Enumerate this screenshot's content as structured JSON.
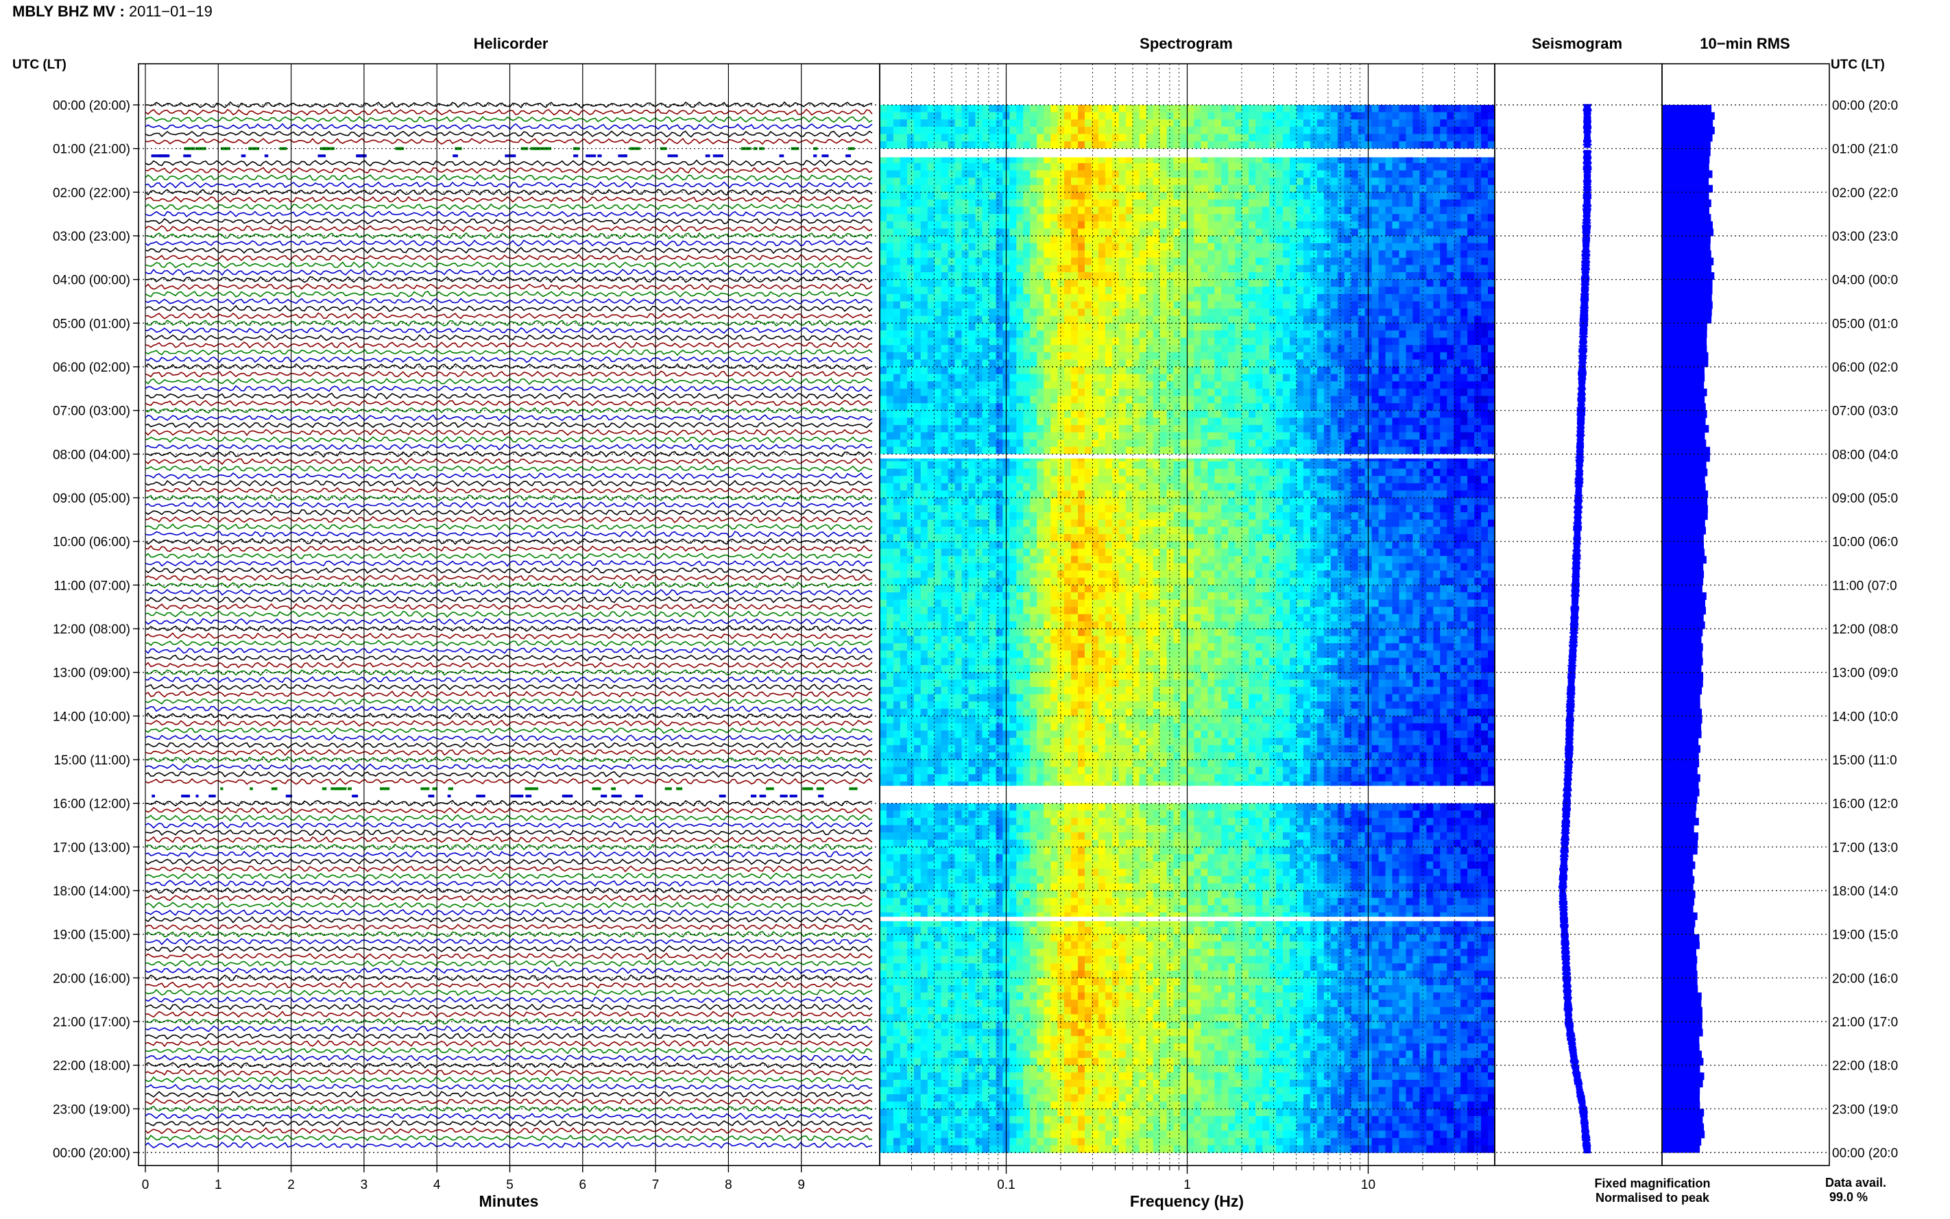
{
  "header": {
    "station": "MBLY BHZ MV",
    "date": "2011−01−19"
  },
  "panels": {
    "helicorder": "Helicorder",
    "spectrogram": "Spectrogram",
    "seismogram": "Seismogram",
    "rms": "10−min RMS"
  },
  "time_axis": {
    "header_left": "UTC (LT)",
    "header_right": "UTC (LT)",
    "left_labels": [
      "00:00 (20:00)",
      "01:00 (21:00)",
      "02:00 (22:00)",
      "03:00 (23:00)",
      "04:00 (00:00)",
      "05:00 (01:00)",
      "06:00 (02:00)",
      "07:00 (03:00)",
      "08:00 (04:00)",
      "09:00 (05:00)",
      "10:00 (06:00)",
      "11:00 (07:00)",
      "12:00 (08:00)",
      "13:00 (09:00)",
      "14:00 (10:00)",
      "15:00 (11:00)",
      "16:00 (12:00)",
      "17:00 (13:00)",
      "18:00 (14:00)",
      "19:00 (15:00)",
      "20:00 (16:00)",
      "21:00 (17:00)",
      "22:00 (18:00)",
      "23:00 (19:00)",
      "00:00 (20:00)"
    ],
    "right_labels": [
      "00:00 (20:0",
      "01:00 (21:0",
      "02:00 (22:0",
      "03:00 (23:0",
      "04:00 (00:0",
      "05:00 (01:0",
      "06:00 (02:0",
      "07:00 (03:0",
      "08:00 (04:0",
      "09:00 (05:0",
      "10:00 (06:0",
      "11:00 (07:0",
      "12:00 (08:0",
      "13:00 (09:0",
      "14:00 (10:0",
      "15:00 (11:0",
      "16:00 (12:0",
      "17:00 (13:0",
      "18:00 (14:0",
      "19:00 (15:0",
      "20:00 (16:0",
      "21:00 (17:0",
      "22:00 (18:0",
      "23:00 (19:0",
      "00:00 (20:0"
    ]
  },
  "helicorder_axis": {
    "ticks": [
      "0",
      "1",
      "2",
      "3",
      "4",
      "5",
      "6",
      "7",
      "8",
      "9"
    ],
    "xlabel": "Minutes"
  },
  "spectrogram_axis": {
    "ticks": [
      "0.1",
      "1",
      "10"
    ],
    "xlabel": "Frequency (Hz)"
  },
  "footer": {
    "legend_fixed": "Fixed magnification",
    "legend_normalised": "Normalised to peak",
    "data_avail_label": "Data avail.",
    "data_avail_value": "99.0 %"
  },
  "colors": {
    "trace_cycle": [
      "#000000",
      "#8b0000",
      "#008000",
      "#0000cd"
    ],
    "seismogram": "#0000ff",
    "rms": "#0000ff",
    "legend_fixed": "#0000ff",
    "legend_normalised": "#ff0000"
  },
  "chart_data": [
    {
      "type": "line",
      "title": "Helicorder",
      "xlabel": "Minutes",
      "xlim": [
        0,
        10
      ],
      "rows_per_hour": 6,
      "trace_color_cycle": [
        "black",
        "darkred",
        "green",
        "blue"
      ],
      "gaps_hours": [
        [
          1.0,
          1.2
        ],
        [
          15.6,
          16.0
        ]
      ]
    },
    {
      "type": "heatmap",
      "title": "Spectrogram",
      "xlabel": "Frequency (Hz)",
      "x_scale": "log",
      "xlim": [
        0.02,
        50
      ],
      "colormap": "jet",
      "gaps_hours": [
        [
          1.0,
          1.2
        ],
        [
          8.0,
          8.1
        ],
        [
          15.6,
          16.0
        ],
        [
          18.6,
          18.7
        ]
      ]
    },
    {
      "type": "line",
      "title": "Seismogram",
      "time_hours": [
        0,
        2,
        4,
        6,
        8,
        10,
        12,
        13,
        14,
        15,
        16,
        17,
        18,
        19,
        20,
        21,
        22,
        23,
        24
      ],
      "relative_offset": [
        0.0,
        0.0,
        -0.05,
        -0.12,
        -0.18,
        -0.25,
        -0.32,
        -0.38,
        -0.42,
        -0.45,
        -0.5,
        -0.55,
        -0.6,
        -0.55,
        -0.5,
        -0.45,
        -0.3,
        -0.1,
        0.0
      ]
    },
    {
      "type": "bar",
      "title": "10−min RMS",
      "orientation": "horizontal",
      "time_hours": [
        0,
        2,
        4,
        6,
        8,
        10,
        12,
        14,
        16,
        18,
        20,
        22,
        24
      ],
      "relative_level": [
        0.62,
        0.58,
        0.6,
        0.52,
        0.55,
        0.52,
        0.5,
        0.45,
        0.42,
        0.38,
        0.45,
        0.48,
        0.48
      ]
    }
  ]
}
